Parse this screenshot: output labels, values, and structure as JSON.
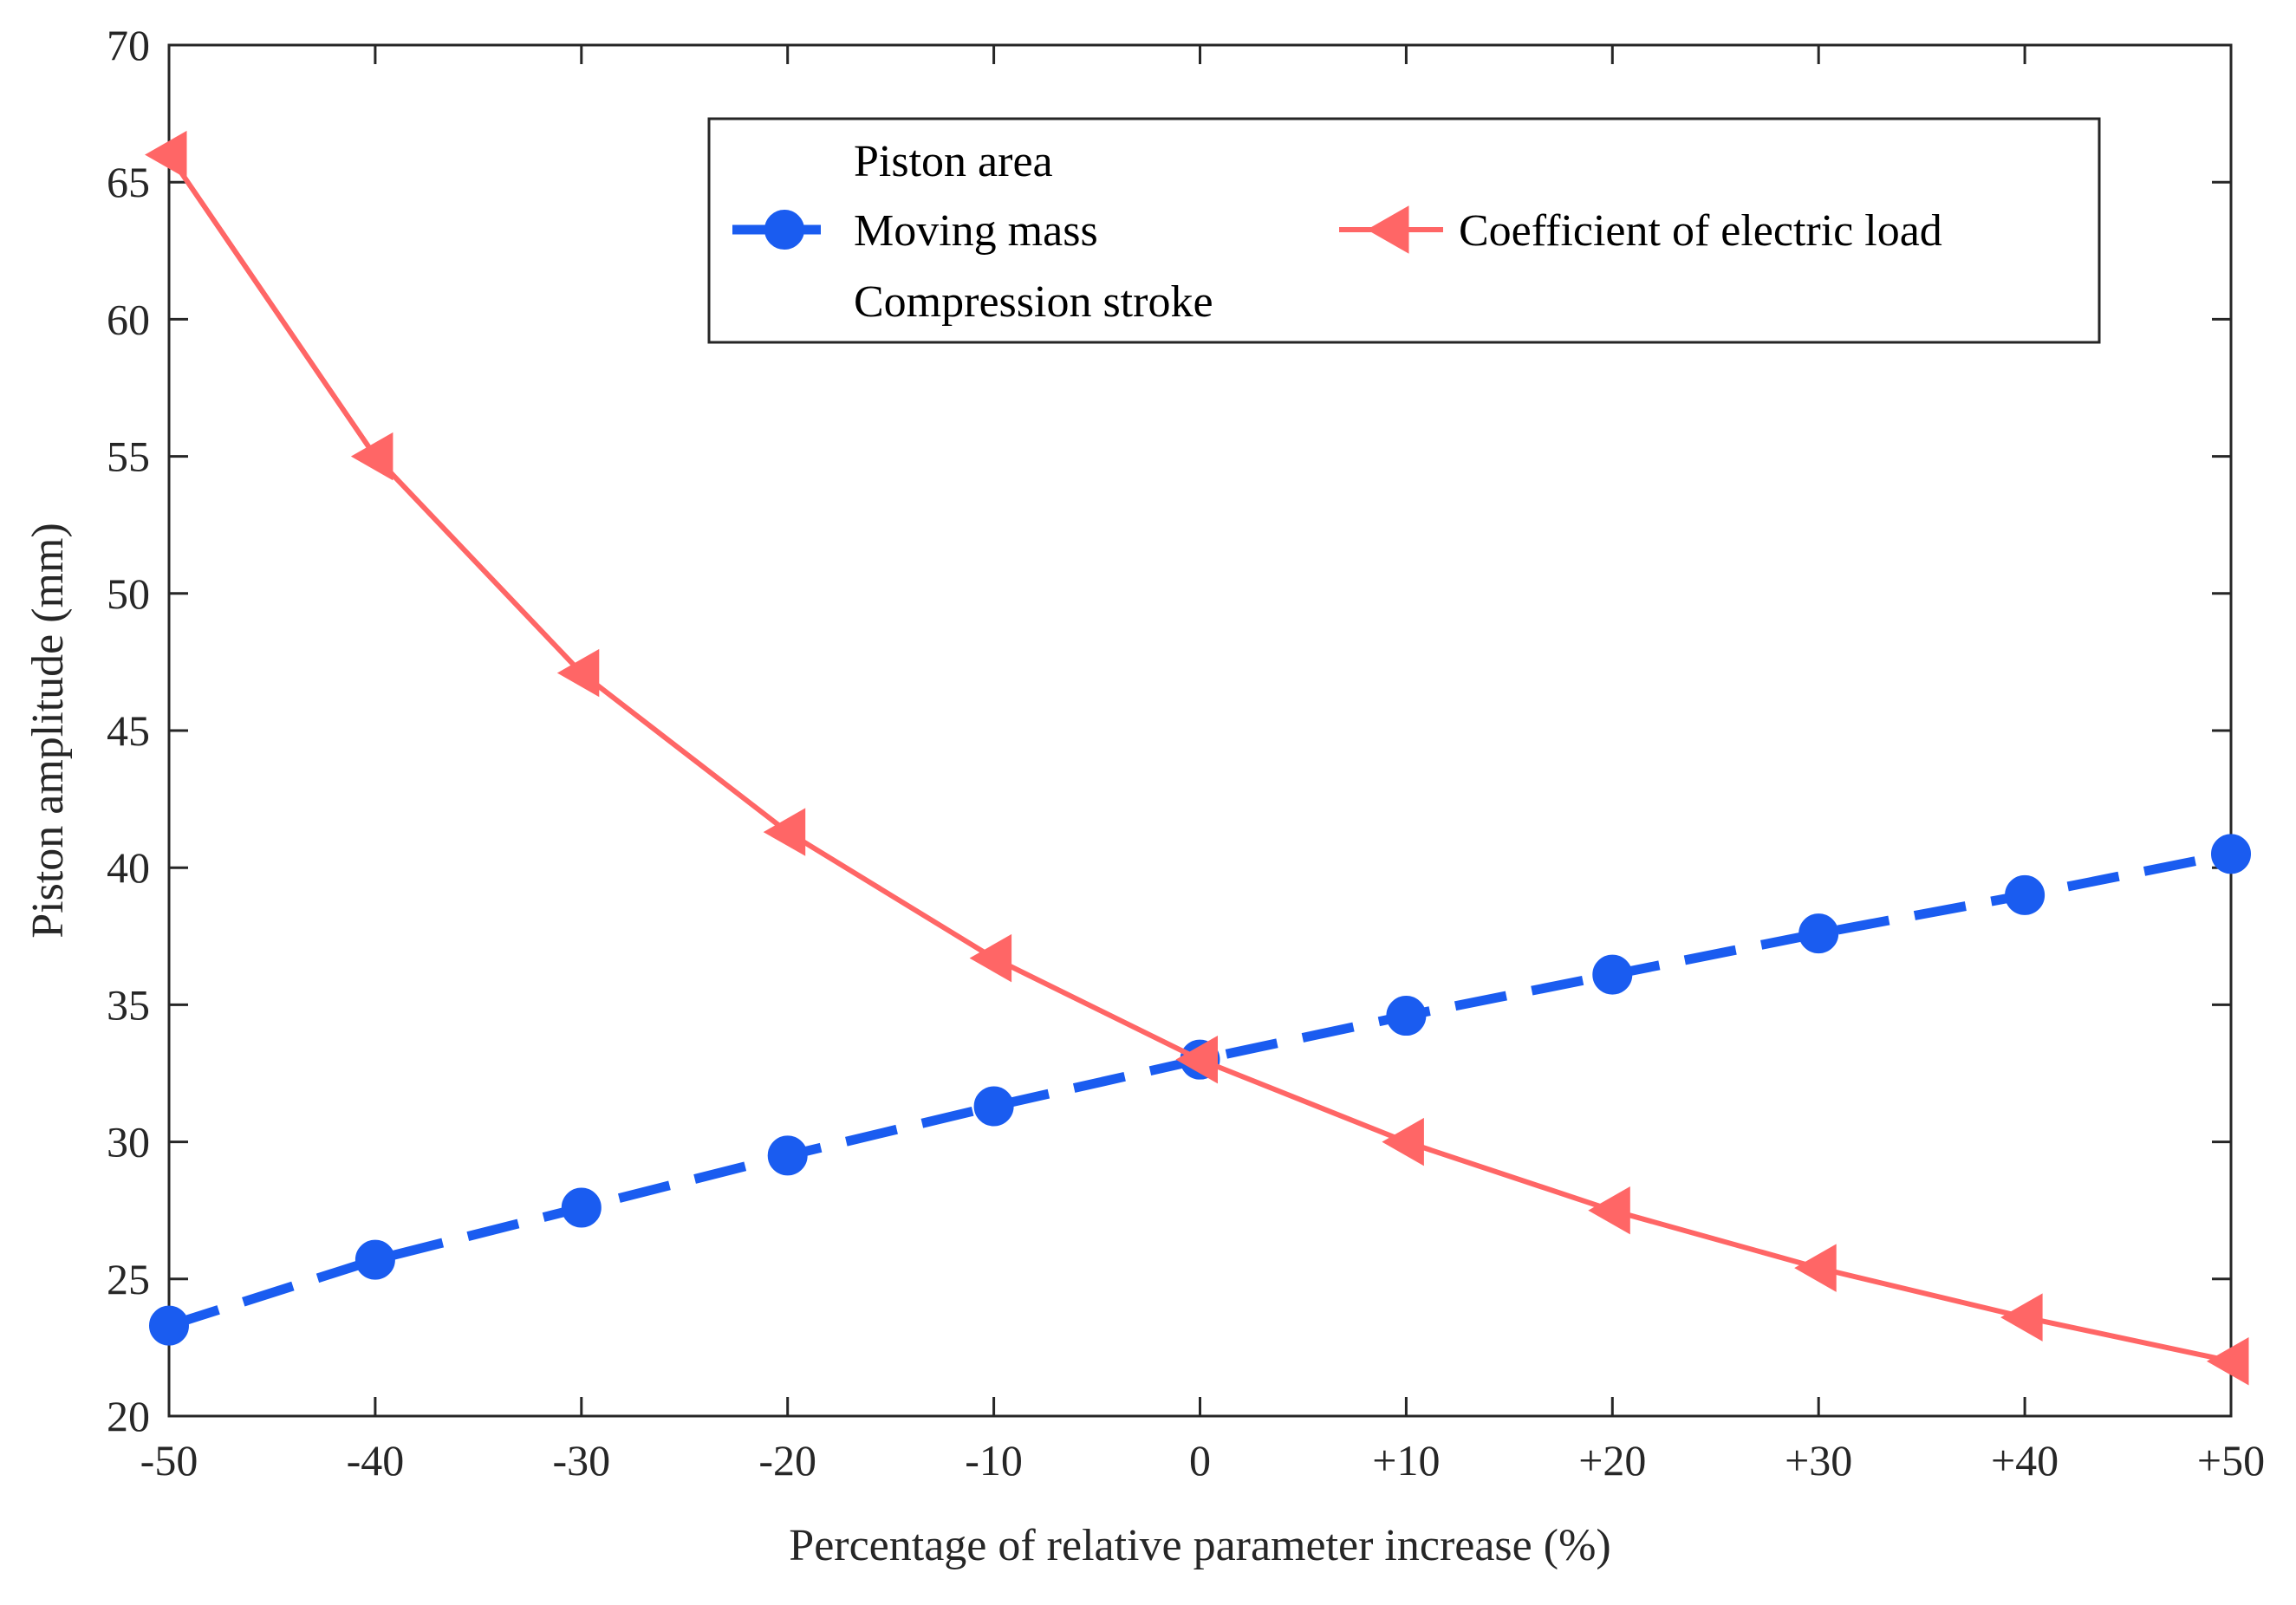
{
  "chart_data": {
    "type": "line",
    "title": "",
    "xlabel": "Percentage of relative parameter increase (%)",
    "ylabel": "Piston amplitude (mm)",
    "x": [
      -50,
      -40,
      -30,
      -20,
      -10,
      0,
      10,
      20,
      30,
      40,
      50
    ],
    "x_tick_labels": [
      "-50",
      "-40",
      "-30",
      "-20",
      "-10",
      "0",
      "+10",
      "+20",
      "+30",
      "+40",
      "+50"
    ],
    "xlim": [
      -50,
      50
    ],
    "ylim": [
      20,
      70
    ],
    "y_ticks": [
      20,
      25,
      30,
      35,
      40,
      45,
      50,
      55,
      60,
      65,
      70
    ],
    "grid": false,
    "legend_position": "top-right",
    "series": [
      {
        "name": "Piston area",
        "style": "no-visible-line",
        "color": "#ffffff",
        "values": null
      },
      {
        "name": "Moving mass",
        "style": "dashed-circle",
        "color": "#1a5cf0",
        "values": [
          23.3,
          25.7,
          27.6,
          29.5,
          31.3,
          33.0,
          34.6,
          36.1,
          37.6,
          39.0,
          40.5
        ]
      },
      {
        "name": "Compression stroke",
        "style": "no-visible-line",
        "color": "#ffffff",
        "values": null
      },
      {
        "name": "Coefficient of electric load",
        "style": "solid-triangle-left",
        "color": "#ff6666",
        "values": [
          66.0,
          55.0,
          47.1,
          41.3,
          36.7,
          33.0,
          30.0,
          27.5,
          25.4,
          23.6,
          22.0
        ]
      }
    ]
  }
}
